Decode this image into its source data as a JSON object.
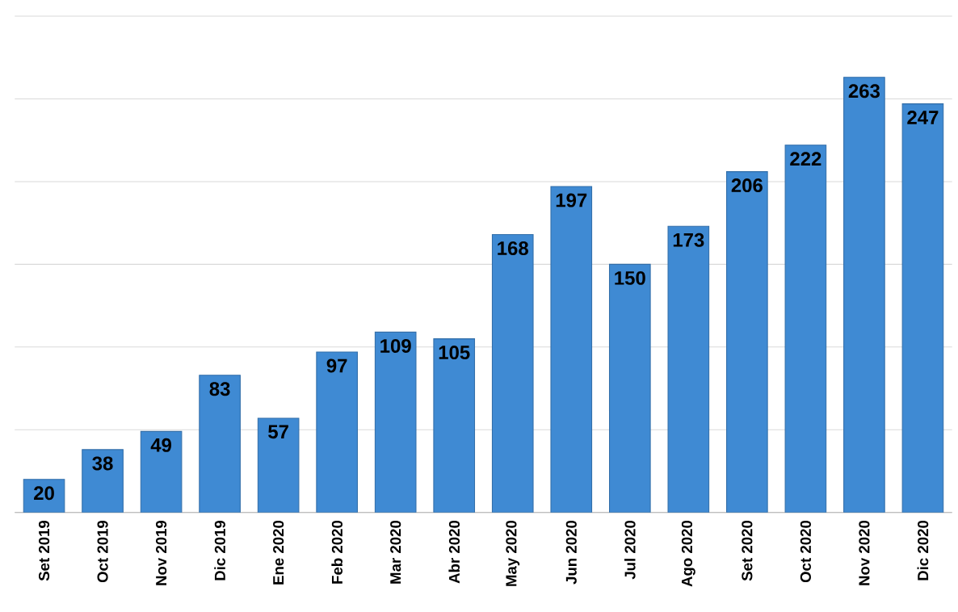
{
  "chart_data": {
    "type": "bar",
    "categories": [
      "Set 2019",
      "Oct 2019",
      "Nov 2019",
      "Dic 2019",
      "Ene 2020",
      "Feb 2020",
      "Mar 2020",
      "Abr 2020",
      "May 2020",
      "Jun 2020",
      "Jul 2020",
      "Ago 2020",
      "Set 2020",
      "Oct 2020",
      "Nov 2020",
      "Dic 2020"
    ],
    "values": [
      20,
      38,
      49,
      83,
      57,
      97,
      109,
      105,
      168,
      197,
      150,
      173,
      206,
      222,
      263,
      247
    ],
    "color": "#3f8ad3",
    "data_labels": true,
    "grid": "y",
    "tick_labels": "x",
    "ylim": [
      0,
      300
    ],
    "yticks": [
      {
        "value": 0,
        "label": null
      },
      {
        "value": 50,
        "label": null
      },
      {
        "value": 100,
        "label": null
      },
      {
        "value": 150,
        "label": null
      },
      {
        "value": 200,
        "label": null
      },
      {
        "value": 250,
        "label": null
      },
      {
        "value": 300,
        "label": null
      }
    ]
  }
}
